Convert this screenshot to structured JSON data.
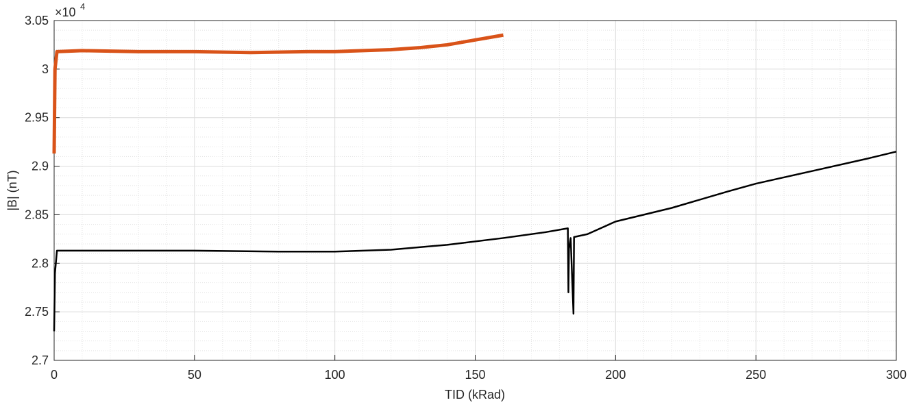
{
  "chart_data": {
    "type": "line",
    "xlabel": "TID (kRad)",
    "ylabel": "|B| (nT)",
    "y_multiplier": {
      "base": "×10",
      "exponent": "4"
    },
    "xlim": [
      0,
      300
    ],
    "xticks": [
      0,
      50,
      100,
      150,
      200,
      250,
      300
    ],
    "ylim": [
      2.7,
      3.05
    ],
    "yticks": [
      2.7,
      2.75,
      2.8,
      2.85,
      2.9,
      2.95,
      3,
      3.05
    ],
    "grid": true,
    "minor_grid": true,
    "series": [
      {
        "color": "#d95319",
        "x": [
          0,
          0.3,
          1,
          10,
          30,
          50,
          70,
          90,
          100,
          120,
          130,
          140,
          150,
          160
        ],
        "values": [
          2.913,
          3.0,
          3.018,
          3.019,
          3.018,
          3.018,
          3.017,
          3.018,
          3.018,
          3.02,
          3.022,
          3.025,
          3.03,
          3.035
        ]
      },
      {
        "color": "#000000",
        "x": [
          0,
          0.3,
          1,
          20,
          50,
          80,
          100,
          120,
          140,
          160,
          175,
          183,
          183.2,
          183.4,
          184,
          185,
          185.2,
          190,
          200,
          220,
          240,
          250,
          270,
          290,
          300
        ],
        "values": [
          2.73,
          2.79,
          2.813,
          2.813,
          2.813,
          2.812,
          2.812,
          2.814,
          2.819,
          2.826,
          2.832,
          2.836,
          2.77,
          2.815,
          2.826,
          2.748,
          2.827,
          2.83,
          2.843,
          2.857,
          2.874,
          2.882,
          2.895,
          2.908,
          2.915
        ]
      }
    ]
  }
}
